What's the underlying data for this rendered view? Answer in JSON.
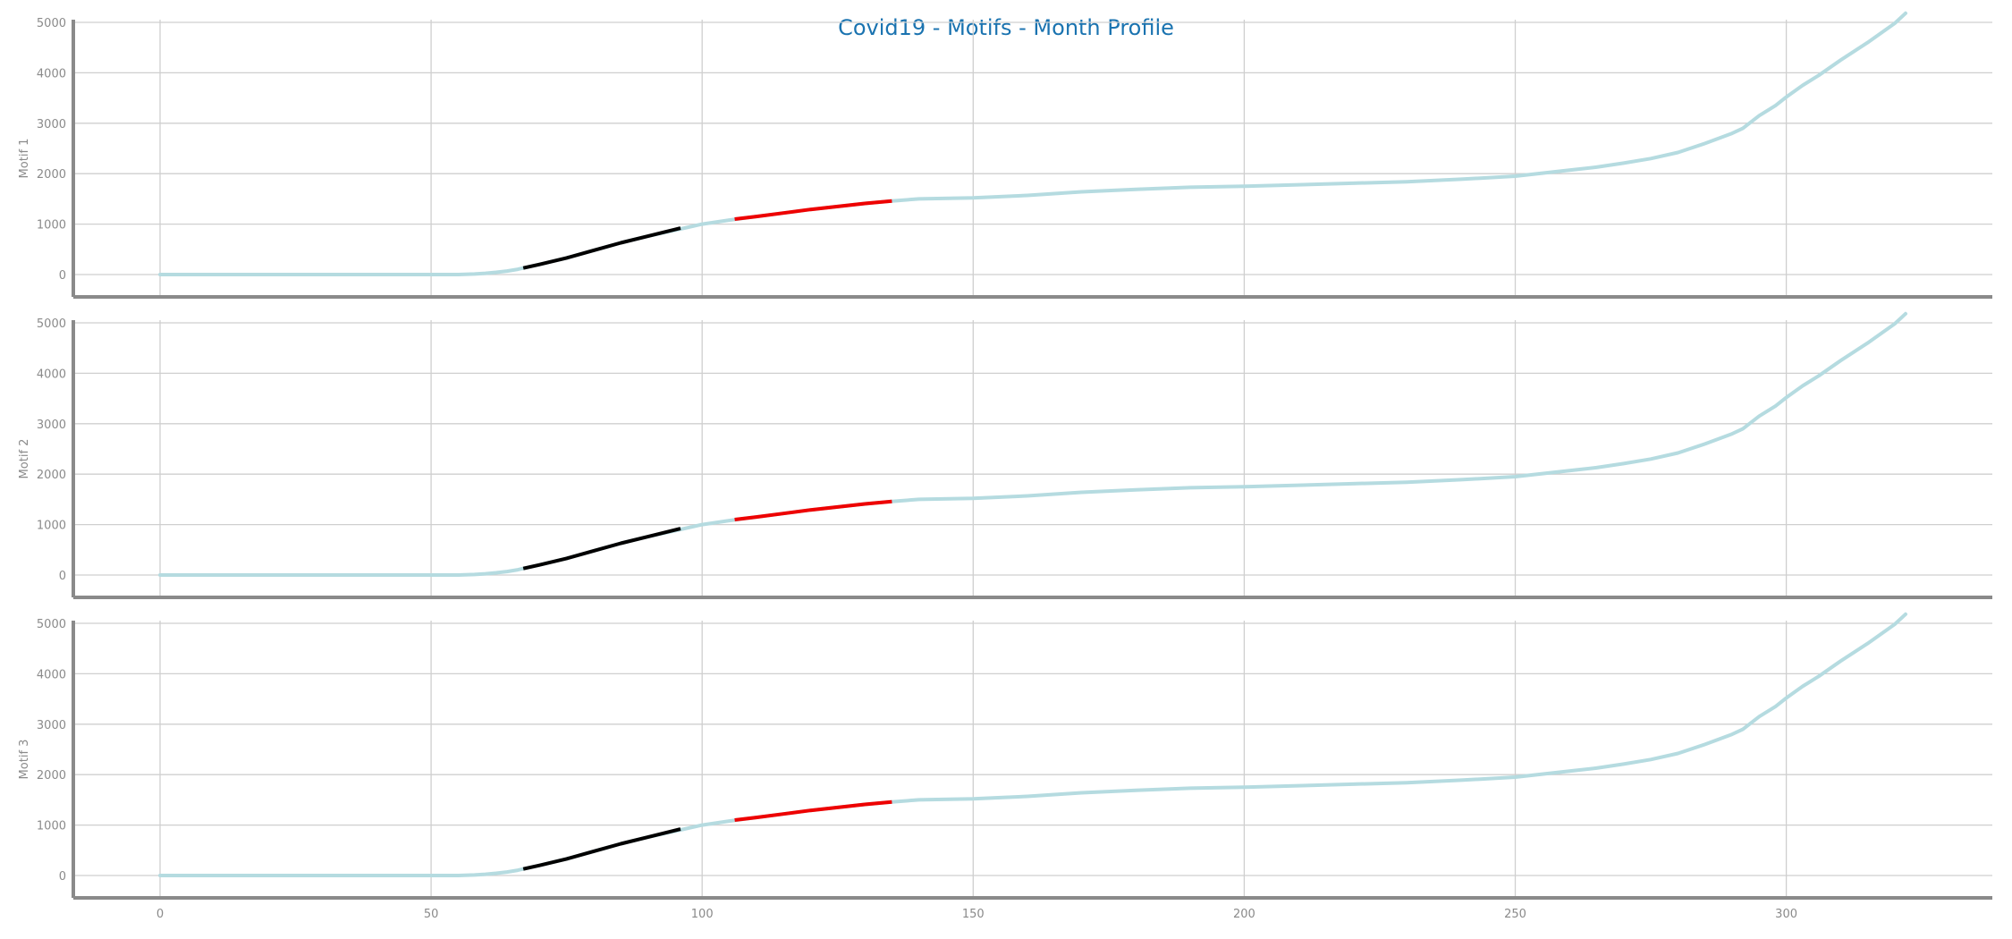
{
  "chart_data": {
    "type": "line",
    "title": "Covid19 - Motifs - Month Profile",
    "xlim": [
      -16,
      337
    ],
    "ylim": [
      -300,
      5500
    ],
    "x_ticks": [
      "0",
      "50",
      "100",
      "150",
      "200",
      "250",
      "300"
    ],
    "y_ticks": [
      "0",
      "1000",
      "2000",
      "3000",
      "4000",
      "5000"
    ],
    "grid": true,
    "colors": {
      "title": "#1a73b0",
      "profile": "#b5dbe0",
      "motif_a": "#000000",
      "motif_b": "#ee0000",
      "grid": "#cfcfcf",
      "axis": "#8a8a8a"
    },
    "profile": {
      "x": [
        0,
        10,
        20,
        30,
        40,
        50,
        55,
        58,
        60,
        62,
        64,
        66,
        67,
        70,
        75,
        80,
        85,
        90,
        95,
        100,
        105,
        110,
        115,
        120,
        125,
        130,
        135,
        140,
        150,
        160,
        170,
        180,
        190,
        200,
        210,
        220,
        230,
        240,
        250,
        255,
        260,
        265,
        270,
        275,
        280,
        285,
        290,
        292,
        295,
        298,
        300,
        303,
        306,
        310,
        315,
        320,
        322
      ],
      "y": [
        0,
        0,
        0,
        0,
        0,
        0,
        0,
        10,
        25,
        45,
        70,
        105,
        130,
        200,
        330,
        480,
        630,
        760,
        880,
        1000,
        1080,
        1150,
        1220,
        1290,
        1350,
        1410,
        1460,
        1500,
        1520,
        1570,
        1640,
        1690,
        1730,
        1750,
        1780,
        1810,
        1840,
        1890,
        1950,
        2010,
        2070,
        2130,
        2210,
        2300,
        2420,
        2600,
        2800,
        2900,
        3150,
        3350,
        3520,
        3750,
        3950,
        4250,
        4600,
        4980,
        5180
      ]
    },
    "panels": [
      {
        "ylabel": "Motif 1",
        "motifs": [
          {
            "x": [
              67,
              70,
              75,
              80,
              85,
              90,
              93,
              96
            ],
            "y": [
              130,
              200,
              330,
              480,
              630,
              760,
              840,
              920
            ]
          },
          {
            "x": [
              106,
              110,
              115,
              120,
              125,
              130,
              135
            ],
            "y": [
              1100,
              1150,
              1220,
              1290,
              1350,
              1410,
              1460
            ]
          }
        ]
      },
      {
        "ylabel": "Motif 2",
        "motifs": [
          {
            "x": [
              67,
              70,
              75,
              80,
              85,
              90,
              93,
              96
            ],
            "y": [
              130,
              200,
              330,
              480,
              630,
              760,
              840,
              920
            ]
          },
          {
            "x": [
              106,
              110,
              115,
              120,
              125,
              130,
              135
            ],
            "y": [
              1100,
              1150,
              1220,
              1290,
              1350,
              1410,
              1460
            ]
          }
        ]
      },
      {
        "ylabel": "Motif 3",
        "motifs": [
          {
            "x": [
              67,
              70,
              75,
              80,
              85,
              90,
              93,
              96
            ],
            "y": [
              130,
              200,
              330,
              480,
              630,
              760,
              840,
              920
            ]
          },
          {
            "x": [
              106,
              110,
              115,
              120,
              125,
              130,
              135
            ],
            "y": [
              1100,
              1150,
              1220,
              1290,
              1350,
              1410,
              1460
            ]
          }
        ]
      }
    ]
  }
}
